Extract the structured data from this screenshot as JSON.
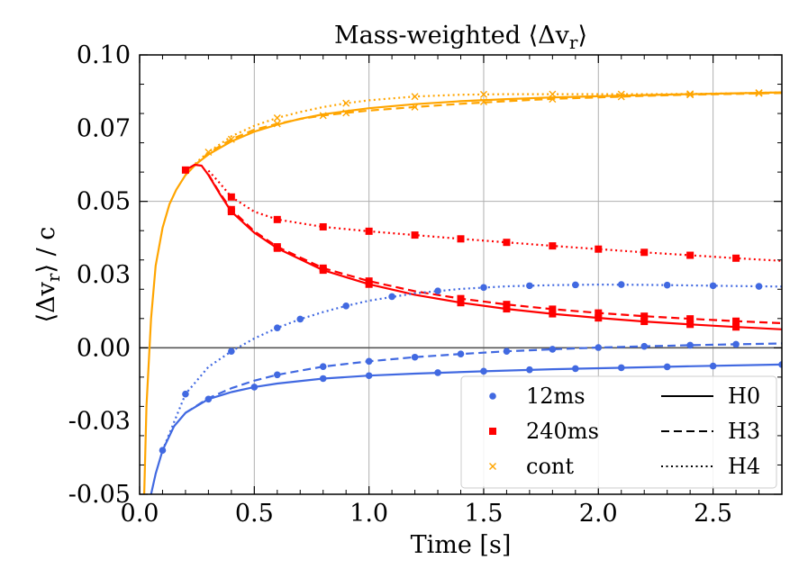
{
  "chart_data": {
    "type": "line",
    "title": "Mass-weighted ⟨Δv",
    "title_sub": "r",
    "title_end": "⟩",
    "xlabel": "Time [s]",
    "ylabel_pre": "⟨Δv",
    "ylabel_sub": "r",
    "ylabel_post": "⟩ / c",
    "xlim": [
      0.0,
      2.8
    ],
    "ylim": [
      -0.05,
      0.1
    ],
    "xticks": [
      0.0,
      0.5,
      1.0,
      1.5,
      2.0,
      2.5
    ],
    "xtick_labels": [
      "0.0",
      "0.5",
      "1.0",
      "1.5",
      "2.0",
      "2.5"
    ],
    "yticks": [
      -0.05,
      0.0,
      0.05,
      0.1
    ],
    "ytick_labels": [
      "-0.05",
      "-0.03",
      "0.00",
      "0.03",
      "0.05",
      "0.07",
      "0.10"
    ],
    "ytick_label_values": [
      -0.05,
      -0.025,
      0.0,
      0.025,
      0.05,
      0.075,
      0.1
    ],
    "grid": true,
    "zero_line": 0.0,
    "legend": {
      "placement": "lower-right",
      "markers": [
        {
          "label": "12ms",
          "color": "#4169e1",
          "marker": "circle"
        },
        {
          "label": "240ms",
          "color": "#ff0000",
          "marker": "square"
        },
        {
          "label": "cont",
          "color": "#ffa500",
          "marker": "x"
        }
      ],
      "lines": [
        {
          "label": "H0",
          "style": "solid"
        },
        {
          "label": "H3",
          "style": "dashed"
        },
        {
          "label": "H4",
          "style": "dotted"
        }
      ]
    },
    "series": [
      {
        "name": "cont H0",
        "group": "cont",
        "style": "solid",
        "color": "#ffa500",
        "x": [
          0.02,
          0.03,
          0.05,
          0.07,
          0.1,
          0.13,
          0.16,
          0.2,
          0.25,
          0.3,
          0.4,
          0.5,
          0.6,
          0.7,
          0.8,
          0.9,
          1.0,
          1.2,
          1.4,
          1.6,
          1.8,
          2.0,
          2.2,
          2.4,
          2.6,
          2.8
        ],
        "y": [
          -0.05,
          -0.02,
          0.01,
          0.028,
          0.041,
          0.049,
          0.054,
          0.059,
          0.063,
          0.066,
          0.0705,
          0.0738,
          0.0762,
          0.0782,
          0.0797,
          0.0808,
          0.0818,
          0.0832,
          0.0842,
          0.0849,
          0.0855,
          0.0859,
          0.0863,
          0.0866,
          0.0869,
          0.0872
        ]
      },
      {
        "name": "cont H3",
        "group": "cont",
        "style": "dashed",
        "color": "#ffa500",
        "x": [
          0.2,
          0.25,
          0.3,
          0.4,
          0.5,
          0.6,
          0.7,
          0.8,
          0.9,
          1.0,
          1.2,
          1.4,
          1.6,
          1.8,
          2.0,
          2.2,
          2.4,
          2.6,
          2.8
        ],
        "y": [
          0.059,
          0.063,
          0.0665,
          0.0712,
          0.0745,
          0.0765,
          0.0781,
          0.0793,
          0.0802,
          0.081,
          0.0822,
          0.0833,
          0.0842,
          0.085,
          0.0855,
          0.086,
          0.0864,
          0.0867,
          0.087
        ],
        "marker_x": [
          0.4,
          0.6,
          0.8,
          0.9,
          1.2,
          1.5,
          1.8,
          2.1,
          2.4,
          2.7
        ],
        "marker_y": [
          0.0712,
          0.0765,
          0.0793,
          0.0802,
          0.0822,
          0.084,
          0.0849,
          0.0857,
          0.0864,
          0.0869
        ]
      },
      {
        "name": "cont H4",
        "group": "cont",
        "style": "dotted",
        "color": "#ffa500",
        "x": [
          0.2,
          0.25,
          0.3,
          0.4,
          0.5,
          0.6,
          0.7,
          0.8,
          0.9,
          1.0,
          1.2,
          1.4,
          1.6,
          1.8,
          2.0,
          2.2,
          2.4,
          2.6,
          2.8
        ],
        "y": [
          0.059,
          0.0635,
          0.0668,
          0.0722,
          0.0758,
          0.0785,
          0.0805,
          0.0822,
          0.0835,
          0.0845,
          0.0858,
          0.0864,
          0.0866,
          0.0866,
          0.0866,
          0.0866,
          0.0867,
          0.0869,
          0.0872
        ],
        "marker_x": [
          0.3,
          0.6,
          0.9,
          1.2,
          1.5,
          1.8,
          2.1,
          2.4,
          2.7
        ],
        "marker_y": [
          0.0668,
          0.0785,
          0.0835,
          0.0858,
          0.0865,
          0.0866,
          0.0866,
          0.0867,
          0.0871
        ]
      },
      {
        "name": "240ms H0",
        "group": "240ms",
        "style": "solid",
        "color": "#ff0000",
        "x": [
          0.2,
          0.24,
          0.27,
          0.3,
          0.35,
          0.4,
          0.5,
          0.6,
          0.8,
          1.0,
          1.2,
          1.4,
          1.6,
          1.8,
          2.0,
          2.2,
          2.4,
          2.6,
          2.8
        ],
        "y": [
          0.0607,
          0.0625,
          0.0622,
          0.059,
          0.0525,
          0.0465,
          0.0393,
          0.034,
          0.0265,
          0.0217,
          0.0181,
          0.0154,
          0.0133,
          0.0116,
          0.0102,
          0.009,
          0.008,
          0.0071,
          0.0063
        ],
        "marker_x": [
          0.2,
          0.4,
          0.6,
          0.8,
          1.0,
          1.4,
          1.6,
          1.8,
          2.0,
          2.2,
          2.4,
          2.6
        ],
        "marker_y": [
          0.0607,
          0.0465,
          0.034,
          0.0265,
          0.0217,
          0.0154,
          0.0133,
          0.0116,
          0.0102,
          0.009,
          0.008,
          0.0071
        ]
      },
      {
        "name": "240ms H3",
        "group": "240ms",
        "style": "dashed",
        "color": "#ff0000",
        "x": [
          0.3,
          0.35,
          0.4,
          0.5,
          0.6,
          0.8,
          1.0,
          1.2,
          1.4,
          1.6,
          1.8,
          2.0,
          2.2,
          2.4,
          2.6,
          2.8
        ],
        "y": [
          0.0592,
          0.0528,
          0.0472,
          0.0398,
          0.0345,
          0.0272,
          0.0228,
          0.0193,
          0.0168,
          0.0148,
          0.0132,
          0.0119,
          0.0108,
          0.0099,
          0.0091,
          0.0084
        ],
        "marker_x": [
          0.4,
          0.6,
          0.8,
          1.0,
          1.4,
          1.6,
          1.8,
          2.0,
          2.2,
          2.4,
          2.6
        ],
        "marker_y": [
          0.0472,
          0.0345,
          0.0272,
          0.0228,
          0.0168,
          0.0148,
          0.0132,
          0.0119,
          0.0108,
          0.0099,
          0.0091
        ]
      },
      {
        "name": "240ms H4",
        "group": "240ms",
        "style": "dotted",
        "color": "#ff0000",
        "x": [
          0.3,
          0.35,
          0.4,
          0.5,
          0.6,
          0.8,
          1.0,
          1.2,
          1.4,
          1.6,
          1.8,
          2.0,
          2.2,
          2.4,
          2.6,
          2.8
        ],
        "y": [
          0.0605,
          0.0562,
          0.0515,
          0.0465,
          0.0438,
          0.0413,
          0.0398,
          0.0385,
          0.0372,
          0.036,
          0.0348,
          0.0337,
          0.0326,
          0.0316,
          0.0306,
          0.0297
        ],
        "marker_x": [
          0.4,
          0.6,
          0.8,
          1.0,
          1.2,
          1.4,
          1.6,
          1.8,
          2.0,
          2.2,
          2.4,
          2.6
        ],
        "marker_y": [
          0.0515,
          0.0438,
          0.0413,
          0.0398,
          0.0385,
          0.0372,
          0.036,
          0.0348,
          0.0337,
          0.0326,
          0.0316,
          0.0306
        ]
      },
      {
        "name": "12ms H0",
        "group": "12ms",
        "style": "solid",
        "color": "#4169e1",
        "x": [
          0.05,
          0.07,
          0.1,
          0.15,
          0.2,
          0.3,
          0.4,
          0.5,
          0.6,
          0.8,
          1.0,
          1.2,
          1.5,
          1.8,
          2.1,
          2.4,
          2.8
        ],
        "y": [
          -0.05,
          -0.043,
          -0.035,
          -0.0268,
          -0.0222,
          -0.0175,
          -0.0151,
          -0.0134,
          -0.0122,
          -0.0105,
          -0.0095,
          -0.0088,
          -0.008,
          -0.0073,
          -0.0068,
          -0.0063,
          -0.0057
        ],
        "marker_x": [
          0.1,
          0.3,
          0.5,
          0.8,
          1.0,
          1.3,
          1.5,
          1.7,
          1.9,
          2.1,
          2.3,
          2.5,
          2.8
        ],
        "marker_y": [
          -0.035,
          -0.0175,
          -0.0134,
          -0.0105,
          -0.0095,
          -0.0085,
          -0.008,
          -0.0075,
          -0.0071,
          -0.0068,
          -0.0065,
          -0.0062,
          -0.0057
        ]
      },
      {
        "name": "12ms H3",
        "group": "12ms",
        "style": "dashed",
        "color": "#4169e1",
        "x": [
          0.2,
          0.3,
          0.4,
          0.5,
          0.6,
          0.8,
          1.0,
          1.2,
          1.4,
          1.6,
          1.8,
          2.0,
          2.2,
          2.4,
          2.6,
          2.8
        ],
        "y": [
          -0.0222,
          -0.0172,
          -0.0138,
          -0.0112,
          -0.0092,
          -0.0064,
          -0.0046,
          -0.0032,
          -0.0021,
          -0.0012,
          -0.0005,
          0.0001,
          0.0005,
          0.0009,
          0.0012,
          0.0015
        ],
        "marker_x": [
          0.6,
          0.8,
          1.0,
          1.2,
          1.4,
          1.6,
          1.8,
          2.0,
          2.2,
          2.4,
          2.6
        ],
        "marker_y": [
          -0.0092,
          -0.0064,
          -0.0046,
          -0.0032,
          -0.0021,
          -0.0012,
          -0.0005,
          0.0001,
          0.0005,
          0.0009,
          0.0012
        ]
      },
      {
        "name": "12ms H4",
        "group": "12ms",
        "style": "dotted",
        "color": "#4169e1",
        "x": [
          0.1,
          0.2,
          0.3,
          0.4,
          0.5,
          0.6,
          0.7,
          0.8,
          0.9,
          1.0,
          1.2,
          1.4,
          1.6,
          1.8,
          2.0,
          2.2,
          2.4,
          2.6,
          2.8
        ],
        "y": [
          -0.035,
          -0.0158,
          -0.0065,
          -0.0012,
          0.0032,
          0.0068,
          0.0098,
          0.0122,
          0.0143,
          0.0161,
          0.0186,
          0.0201,
          0.021,
          0.0214,
          0.0216,
          0.0215,
          0.0213,
          0.0211,
          0.0209
        ],
        "marker_x": [
          0.2,
          0.4,
          0.6,
          0.7,
          0.9,
          1.1,
          1.3,
          1.5,
          1.7,
          1.9,
          2.1,
          2.3,
          2.5,
          2.7
        ],
        "marker_y": [
          -0.0158,
          -0.0012,
          0.0068,
          0.0098,
          0.0143,
          0.0175,
          0.0194,
          0.0206,
          0.0212,
          0.0215,
          0.0216,
          0.0214,
          0.0212,
          0.021
        ]
      }
    ]
  }
}
